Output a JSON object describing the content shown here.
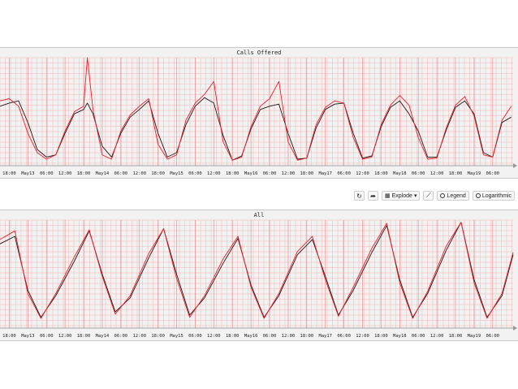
{
  "toolbar": {
    "refresh_icon": "refresh-icon",
    "share_icon": "share-icon",
    "explode_label": "Explode",
    "chart_icon": "line-chart-icon",
    "legend_label": "Legend",
    "logarithmic_label": "Logarithmic"
  },
  "colors": {
    "series_black": "#1a1a1a",
    "series_red": "#e8202a",
    "grid": "#f4b6b6",
    "grid_major": "#e89090"
  },
  "chart_data": [
    {
      "type": "line",
      "title": "Calls Offered",
      "tick_labels": [
        "18:00",
        "May13",
        "06:00",
        "12:00",
        "18:00",
        "May14",
        "06:00",
        "12:00",
        "18:00",
        "May15",
        "06:00",
        "12:00",
        "18:00",
        "May16",
        "06:00",
        "12:00",
        "18:00",
        "May17",
        "06:00",
        "12:00",
        "18:00",
        "May18",
        "06:00",
        "12:00",
        "18:00",
        "May19",
        "06:00"
      ],
      "x_range": [
        0,
        27.6
      ],
      "y_range": [
        0,
        1
      ],
      "grid": true,
      "series": [
        {
          "color": "#1a1a1a",
          "x": [
            0,
            0.5,
            1,
            1.5,
            2,
            2.5,
            3,
            3.5,
            4,
            4.5,
            4.7,
            5,
            5.5,
            6,
            6.5,
            7,
            7.5,
            8,
            8.5,
            9,
            9.5,
            10,
            10.5,
            11,
            11.5,
            12,
            12.5,
            13,
            13.5,
            14,
            14.5,
            15,
            15.5,
            16,
            16.5,
            17,
            17.5,
            18,
            18.5,
            19,
            19.5,
            20,
            20.5,
            21,
            21.5,
            22,
            22.5,
            23,
            23.5,
            24,
            24.5,
            25,
            25.5,
            26,
            26.5,
            27,
            27.5
          ],
          "y": [
            0.55,
            0.58,
            0.6,
            0.4,
            0.15,
            0.08,
            0.1,
            0.3,
            0.48,
            0.52,
            0.58,
            0.48,
            0.18,
            0.08,
            0.3,
            0.45,
            0.52,
            0.6,
            0.3,
            0.08,
            0.12,
            0.38,
            0.55,
            0.63,
            0.58,
            0.28,
            0.05,
            0.09,
            0.34,
            0.52,
            0.55,
            0.57,
            0.3,
            0.06,
            0.07,
            0.35,
            0.52,
            0.57,
            0.58,
            0.3,
            0.07,
            0.09,
            0.36,
            0.54,
            0.6,
            0.48,
            0.32,
            0.08,
            0.08,
            0.33,
            0.54,
            0.6,
            0.48,
            0.12,
            0.08,
            0.4,
            0.45
          ]
        },
        {
          "color": "#e8202a",
          "x": [
            0,
            0.5,
            1,
            1.5,
            2,
            2.5,
            3,
            3.5,
            4,
            4.5,
            4.7,
            5,
            5.5,
            6,
            6.5,
            7,
            7.5,
            8,
            8.5,
            9,
            9.5,
            10,
            10.5,
            11,
            11.5,
            12,
            12.5,
            13,
            13.5,
            14,
            14.5,
            15,
            15.5,
            16,
            16.5,
            17,
            17.5,
            18,
            18.5,
            19,
            19.5,
            20,
            20.5,
            21,
            21.5,
            22,
            22.5,
            23,
            23.5,
            24,
            24.5,
            25,
            25.5,
            26,
            26.5,
            27,
            27.5
          ],
          "y": [
            0.6,
            0.62,
            0.55,
            0.3,
            0.12,
            0.06,
            0.1,
            0.32,
            0.5,
            0.55,
            1.0,
            0.52,
            0.1,
            0.06,
            0.32,
            0.47,
            0.55,
            0.62,
            0.2,
            0.06,
            0.1,
            0.42,
            0.58,
            0.66,
            0.78,
            0.22,
            0.05,
            0.08,
            0.36,
            0.55,
            0.62,
            0.78,
            0.22,
            0.05,
            0.07,
            0.38,
            0.54,
            0.6,
            0.58,
            0.26,
            0.06,
            0.08,
            0.38,
            0.56,
            0.65,
            0.56,
            0.26,
            0.06,
            0.07,
            0.35,
            0.56,
            0.64,
            0.46,
            0.1,
            0.08,
            0.42,
            0.55
          ]
        }
      ]
    },
    {
      "type": "line",
      "title": "All",
      "tick_labels": [
        "18:00",
        "May13",
        "06:00",
        "12:00",
        "18:00",
        "May14",
        "06:00",
        "12:00",
        "18:00",
        "May15",
        "06:00",
        "12:00",
        "18:00",
        "May16",
        "06:00",
        "12:00",
        "18:00",
        "May17",
        "06:00",
        "12:00",
        "18:00",
        "May18",
        "06:00",
        "12:00",
        "18:00",
        "May19",
        "06:00"
      ],
      "x_range": [
        0,
        27.6
      ],
      "y_range": [
        0,
        1
      ],
      "grid": true,
      "series": [
        {
          "color": "#1a1a1a",
          "x": [
            0,
            0.8,
            1.5,
            2.2,
            3,
            4,
            4.8,
            5.5,
            6.2,
            7,
            8,
            8.8,
            9.5,
            10.2,
            11,
            12,
            12.8,
            13.5,
            14.2,
            15,
            16,
            16.8,
            17.5,
            18.2,
            19,
            20,
            20.8,
            21.5,
            22.2,
            23,
            24,
            24.8,
            25.5,
            26.2,
            27,
            27.6
          ],
          "y": [
            0.78,
            0.85,
            0.35,
            0.1,
            0.3,
            0.62,
            0.9,
            0.5,
            0.15,
            0.28,
            0.65,
            0.92,
            0.5,
            0.12,
            0.28,
            0.6,
            0.83,
            0.4,
            0.1,
            0.3,
            0.68,
            0.82,
            0.48,
            0.12,
            0.35,
            0.7,
            0.95,
            0.45,
            0.1,
            0.32,
            0.72,
            0.98,
            0.45,
            0.1,
            0.3,
            0.68
          ]
        },
        {
          "color": "#e8202a",
          "x": [
            0,
            0.8,
            1.5,
            2.2,
            3,
            4,
            4.8,
            5.5,
            6.2,
            7,
            8,
            8.8,
            9.5,
            10.2,
            11,
            12,
            12.8,
            13.5,
            14.2,
            15,
            16,
            16.8,
            17.5,
            18.2,
            19,
            20,
            20.8,
            21.5,
            22.2,
            23,
            24,
            24.8,
            25.5,
            26.2,
            27,
            27.6
          ],
          "y": [
            0.82,
            0.9,
            0.32,
            0.09,
            0.32,
            0.66,
            0.91,
            0.48,
            0.13,
            0.3,
            0.69,
            0.92,
            0.46,
            0.1,
            0.3,
            0.64,
            0.85,
            0.38,
            0.09,
            0.32,
            0.71,
            0.85,
            0.45,
            0.11,
            0.38,
            0.74,
            0.97,
            0.42,
            0.09,
            0.34,
            0.76,
            0.98,
            0.42,
            0.09,
            0.32,
            0.7
          ]
        }
      ]
    }
  ]
}
